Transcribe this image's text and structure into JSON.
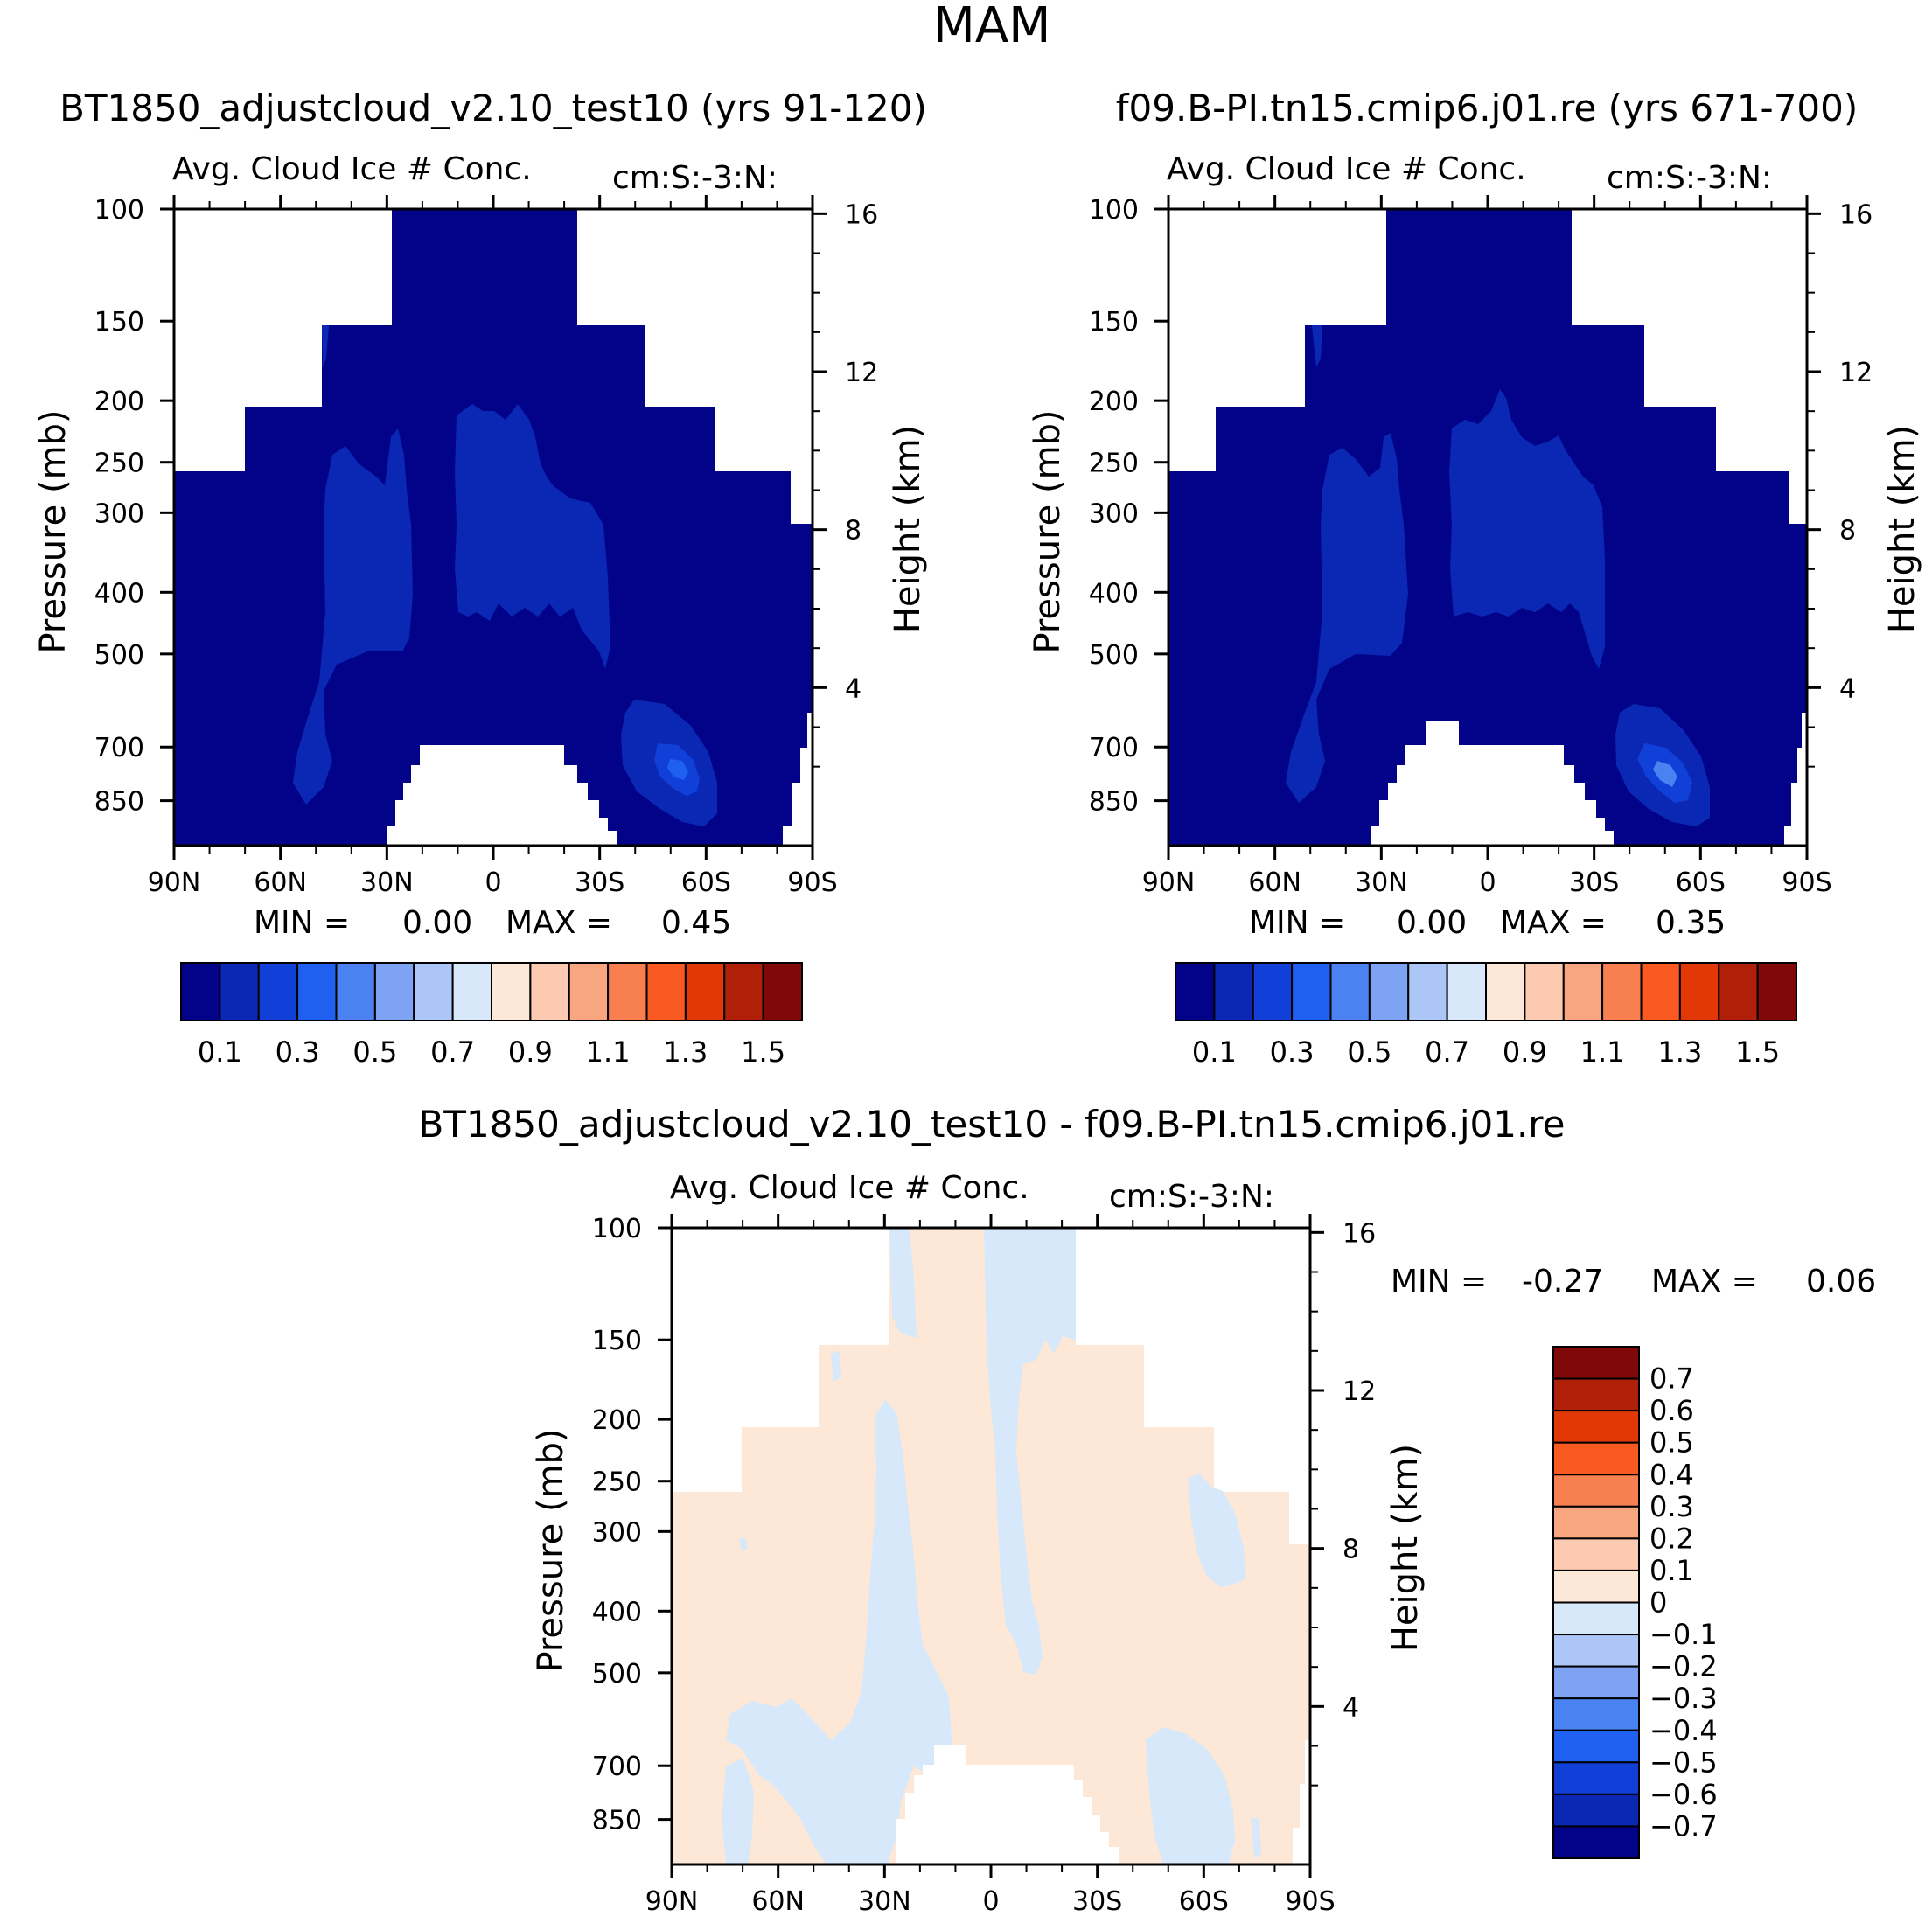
{
  "page_title": "MAM",
  "colors": {
    "abs_scale": [
      "#03038a",
      "#0a28b4",
      "#1040d8",
      "#2060f0",
      "#4a82f2",
      "#7ea2f4",
      "#acc6f8",
      "#d8e8fa",
      "#fde8d8",
      "#fbcab0",
      "#f8a680",
      "#f88050",
      "#f85a22",
      "#e23808",
      "#b02008",
      "#800808"
    ],
    "diff_scale": [
      "#03038a",
      "#0a28b4",
      "#1040d8",
      "#2060f0",
      "#4a82f2",
      "#7ea2f4",
      "#acc6f8",
      "#d6e8fa",
      "#fde8d8",
      "#fbcab0",
      "#f8a680",
      "#f88050",
      "#f85a22",
      "#e23808",
      "#b02008",
      "#800808"
    ],
    "field_dark": "#03038a",
    "field_mid": "#0a28b4",
    "field_light": "#1040d8",
    "diff_pos": "#fde8d8",
    "diff_neg": "#d6e8fa"
  },
  "chart_data": [
    {
      "type": "heatmap",
      "title": "BT1850_adjustcloud_v2.10_test10 (yrs 91-120)",
      "subtitle": "Avg. Cloud Ice # Conc.",
      "units_label": "cm:S:-3:N:",
      "xlabel": "",
      "ylabel": "Pressure (mb)",
      "y2label": "Height (km)",
      "x_ticks": [
        "90N",
        "60N",
        "30N",
        "0",
        "30S",
        "60S",
        "90S"
      ],
      "x_range": [
        90,
        -90
      ],
      "y_ticks": [
        100,
        150,
        200,
        250,
        300,
        400,
        500,
        700,
        850
      ],
      "y_range": [
        100,
        1000
      ],
      "y_scale": "log",
      "height_ticks": [
        4,
        8,
        12,
        16
      ],
      "min_label": "MIN =",
      "min_value": "0.00",
      "max_label": "MAX =",
      "max_value": "0.45",
      "colorbar_levels": [
        0.1,
        0.2,
        0.3,
        0.4,
        0.5,
        0.6,
        0.7,
        0.8,
        0.9,
        1.0,
        1.1,
        1.2,
        1.3,
        1.4,
        1.5
      ],
      "colorbar_labels": [
        "0.1",
        "0.3",
        "0.5",
        "0.7",
        "0.9",
        "1.1",
        "1.3",
        "1.5"
      ],
      "colorbar_orientation": "horizontal"
    },
    {
      "type": "heatmap",
      "title": "f09.B-PI.tn15.cmip6.j01.re (yrs 671-700)",
      "subtitle": "Avg. Cloud Ice # Conc.",
      "units_label": "cm:S:-3:N:",
      "xlabel": "",
      "ylabel": "Pressure (mb)",
      "y2label": "Height (km)",
      "x_ticks": [
        "90N",
        "60N",
        "30N",
        "0",
        "30S",
        "60S",
        "90S"
      ],
      "x_range": [
        90,
        -90
      ],
      "y_ticks": [
        100,
        150,
        200,
        250,
        300,
        400,
        500,
        700,
        850
      ],
      "y_range": [
        100,
        1000
      ],
      "y_scale": "log",
      "height_ticks": [
        4,
        8,
        12,
        16
      ],
      "min_label": "MIN =",
      "min_value": "0.00",
      "max_label": "MAX =",
      "max_value": "0.35",
      "colorbar_levels": [
        0.1,
        0.2,
        0.3,
        0.4,
        0.5,
        0.6,
        0.7,
        0.8,
        0.9,
        1.0,
        1.1,
        1.2,
        1.3,
        1.4,
        1.5
      ],
      "colorbar_labels": [
        "0.1",
        "0.3",
        "0.5",
        "0.7",
        "0.9",
        "1.1",
        "1.3",
        "1.5"
      ],
      "colorbar_orientation": "horizontal"
    },
    {
      "type": "heatmap",
      "title": "BT1850_adjustcloud_v2.10_test10 - f09.B-PI.tn15.cmip6.j01.re",
      "subtitle": "Avg. Cloud Ice # Conc.",
      "units_label": "cm:S:-3:N:",
      "xlabel": "",
      "ylabel": "Pressure (mb)",
      "y2label": "Height (km)",
      "x_ticks": [
        "90N",
        "60N",
        "30N",
        "0",
        "30S",
        "60S",
        "90S"
      ],
      "x_range": [
        90,
        -90
      ],
      "y_ticks": [
        100,
        150,
        200,
        250,
        300,
        400,
        500,
        700,
        850
      ],
      "y_range": [
        100,
        1000
      ],
      "y_scale": "log",
      "height_ticks": [
        4,
        8,
        12,
        16
      ],
      "min_label": "MIN =",
      "min_value": "-0.27",
      "max_label": "MAX =",
      "max_value": "0.06",
      "colorbar_levels": [
        -0.7,
        -0.6,
        -0.5,
        -0.4,
        -0.3,
        -0.2,
        -0.1,
        0,
        0.1,
        0.2,
        0.3,
        0.4,
        0.5,
        0.6,
        0.7
      ],
      "colorbar_labels": [
        "0.7",
        "0.6",
        "0.5",
        "0.4",
        "0.3",
        "0.2",
        "0.1",
        "0",
        "-0.1",
        "-0.2",
        "-0.3",
        "-0.4",
        "-0.5",
        "-0.6",
        "-0.7"
      ],
      "colorbar_orientation": "vertical"
    }
  ]
}
